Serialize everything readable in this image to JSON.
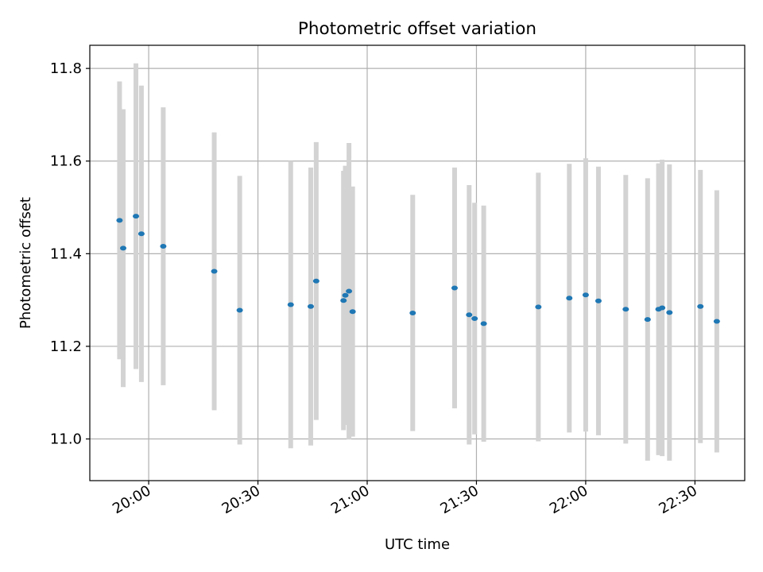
{
  "chart_data": {
    "type": "scatter",
    "title": "Photometric offset variation",
    "xlabel": "UTC time",
    "ylabel": "Photometric offset",
    "x_scale": "time",
    "xlim": [
      "19:43:50",
      "22:43:40"
    ],
    "ylim": [
      10.91,
      11.85
    ],
    "x_ticks": [
      "20:00",
      "20:30",
      "21:00",
      "21:30",
      "22:00",
      "22:30"
    ],
    "y_ticks": [
      "11.0",
      "11.2",
      "11.4",
      "11.6",
      "11.8"
    ],
    "grid": true,
    "colors": {
      "point": "#1f77b4",
      "errorbar": "#d3d3d3",
      "grid": "#b0b0b0",
      "axes": "#000000"
    },
    "series": [
      {
        "points": [
          {
            "x": "19:52:00",
            "y": 11.472,
            "yerr": 0.3
          },
          {
            "x": "19:53:00",
            "y": 11.412,
            "yerr": 0.3
          },
          {
            "x": "19:56:30",
            "y": 11.481,
            "yerr": 0.33
          },
          {
            "x": "19:58:00",
            "y": 11.443,
            "yerr": 0.32
          },
          {
            "x": "20:04:00",
            "y": 11.416,
            "yerr": 0.3
          },
          {
            "x": "20:18:00",
            "y": 11.362,
            "yerr": 0.3
          },
          {
            "x": "20:25:00",
            "y": 11.278,
            "yerr": 0.29
          },
          {
            "x": "20:39:00",
            "y": 11.29,
            "yerr": 0.31
          },
          {
            "x": "20:44:30",
            "y": 11.286,
            "yerr": 0.3
          },
          {
            "x": "20:46:00",
            "y": 11.341,
            "yerr": 0.3
          },
          {
            "x": "20:53:30",
            "y": 11.299,
            "yerr": 0.28
          },
          {
            "x": "20:54:00",
            "y": 11.31,
            "yerr": 0.28
          },
          {
            "x": "20:55:00",
            "y": 11.319,
            "yerr": 0.32
          },
          {
            "x": "20:56:00",
            "y": 11.275,
            "yerr": 0.27
          },
          {
            "x": "21:12:30",
            "y": 11.272,
            "yerr": 0.255
          },
          {
            "x": "21:24:00",
            "y": 11.326,
            "yerr": 0.26
          },
          {
            "x": "21:28:00",
            "y": 11.268,
            "yerr": 0.28
          },
          {
            "x": "21:29:30",
            "y": 11.26,
            "yerr": 0.25
          },
          {
            "x": "21:32:00",
            "y": 11.249,
            "yerr": 0.255
          },
          {
            "x": "21:47:00",
            "y": 11.285,
            "yerr": 0.29
          },
          {
            "x": "21:55:30",
            "y": 11.304,
            "yerr": 0.29
          },
          {
            "x": "22:00:00",
            "y": 11.311,
            "yerr": 0.295
          },
          {
            "x": "22:03:30",
            "y": 11.298,
            "yerr": 0.29
          },
          {
            "x": "22:11:00",
            "y": 11.28,
            "yerr": 0.29
          },
          {
            "x": "22:17:00",
            "y": 11.258,
            "yerr": 0.305
          },
          {
            "x": "22:20:00",
            "y": 11.28,
            "yerr": 0.315
          },
          {
            "x": "22:21:00",
            "y": 11.283,
            "yerr": 0.32
          },
          {
            "x": "22:23:00",
            "y": 11.273,
            "yerr": 0.32
          },
          {
            "x": "22:31:30",
            "y": 11.286,
            "yerr": 0.295
          },
          {
            "x": "22:36:00",
            "y": 11.254,
            "yerr": 0.283
          }
        ]
      }
    ]
  }
}
